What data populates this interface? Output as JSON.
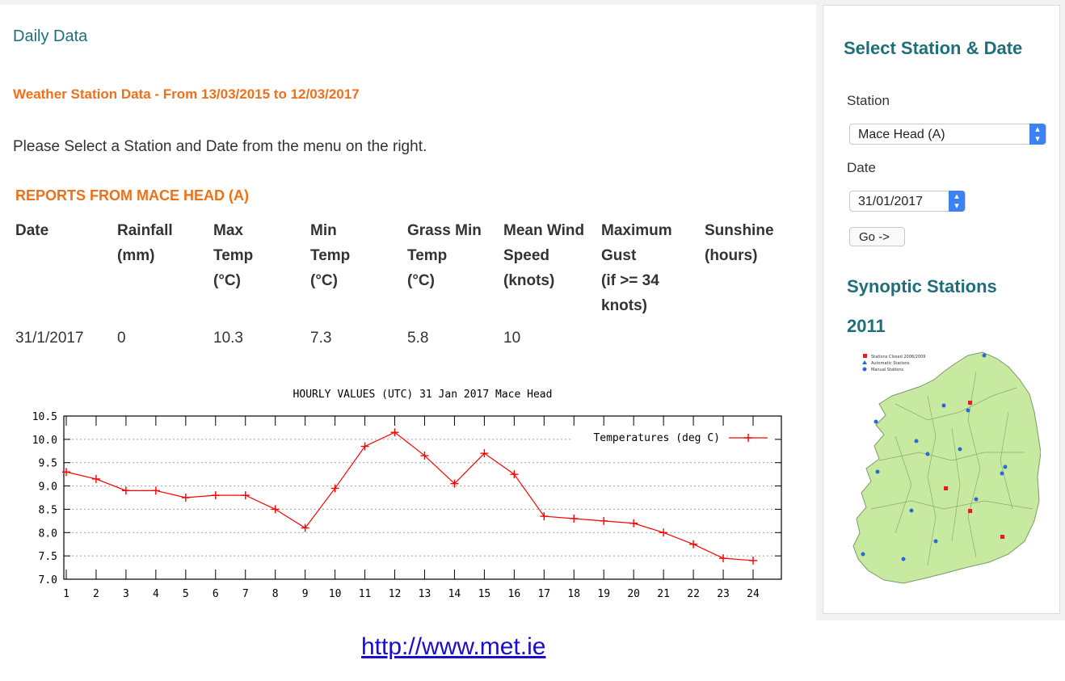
{
  "main": {
    "heading": "Daily Data",
    "range_title": "Weather Station Data - From 13/03/2015 to 12/03/2017",
    "instruction": "Please Select a Station and Date from the menu on the right.",
    "reports_title": "REPORTS FROM MACE HEAD (A)",
    "table": {
      "headers": [
        [
          "Date"
        ],
        [
          "Rainfall",
          "(mm)"
        ],
        [
          "Max",
          "Temp",
          "(°C)"
        ],
        [
          "Min",
          "Temp",
          "(°C)"
        ],
        [
          "Grass Min",
          "Temp",
          "(°C)"
        ],
        [
          "Mean Wind",
          "Speed",
          "(knots)"
        ],
        [
          "Maximum",
          "Gust",
          "(if >= 34",
          "knots)"
        ],
        [
          "Sunshine",
          "(hours)"
        ]
      ],
      "row": [
        "31/1/2017",
        "0",
        "10.3",
        "7.3",
        "5.8",
        "10",
        "",
        ""
      ]
    }
  },
  "chart_data": {
    "type": "line",
    "title": "HOURLY VALUES (UTC) 31 Jan 2017  Mace Head",
    "x": [
      1,
      2,
      3,
      4,
      5,
      6,
      7,
      8,
      9,
      10,
      11,
      12,
      13,
      14,
      15,
      16,
      17,
      18,
      19,
      20,
      21,
      22,
      23,
      24
    ],
    "series": [
      {
        "name": "Temperatures (deg C)",
        "color": "#ff0000",
        "values": [
          9.3,
          9.15,
          8.9,
          8.9,
          8.75,
          8.8,
          8.8,
          8.5,
          8.1,
          8.95,
          9.85,
          10.15,
          9.65,
          9.05,
          9.7,
          9.25,
          8.35,
          8.3,
          8.25,
          8.2,
          8.0,
          7.75,
          7.45,
          7.4
        ]
      }
    ],
    "ylim": [
      7.0,
      10.5
    ],
    "yticks": [
      "7.0",
      "7.5",
      "8.0",
      "8.5",
      "9.0",
      "9.5",
      "10.0",
      "10.5"
    ],
    "xticks": [
      "1",
      "2",
      "3",
      "4",
      "5",
      "6",
      "7",
      "8",
      "9",
      "10",
      "11",
      "12",
      "13",
      "14",
      "15",
      "16",
      "17",
      "18",
      "19",
      "20",
      "21",
      "22",
      "23",
      "24"
    ],
    "grid": true,
    "legend_position": "top-right",
    "overflow_tick": "6.5"
  },
  "sidebar": {
    "title": "Select Station & Date",
    "station_label": "Station",
    "station_value": "Mace Head (A)",
    "date_label": "Date",
    "date_value": "31/01/2017",
    "go_label": "Go ->",
    "synoptic_title": "Synoptic Stations",
    "synoptic_year": "2011",
    "map_legend": [
      "Stations Closed 2008/2009",
      "Automatic Stations",
      "Manual Stations"
    ]
  },
  "footer_link": "http://www.met.ie",
  "colors": {
    "accent_teal": "#1f6f7a",
    "accent_orange": "#f07018",
    "link": "#1a0dcc",
    "map_land": "#c8eaa0",
    "select_arrow": "#3b82f6"
  }
}
